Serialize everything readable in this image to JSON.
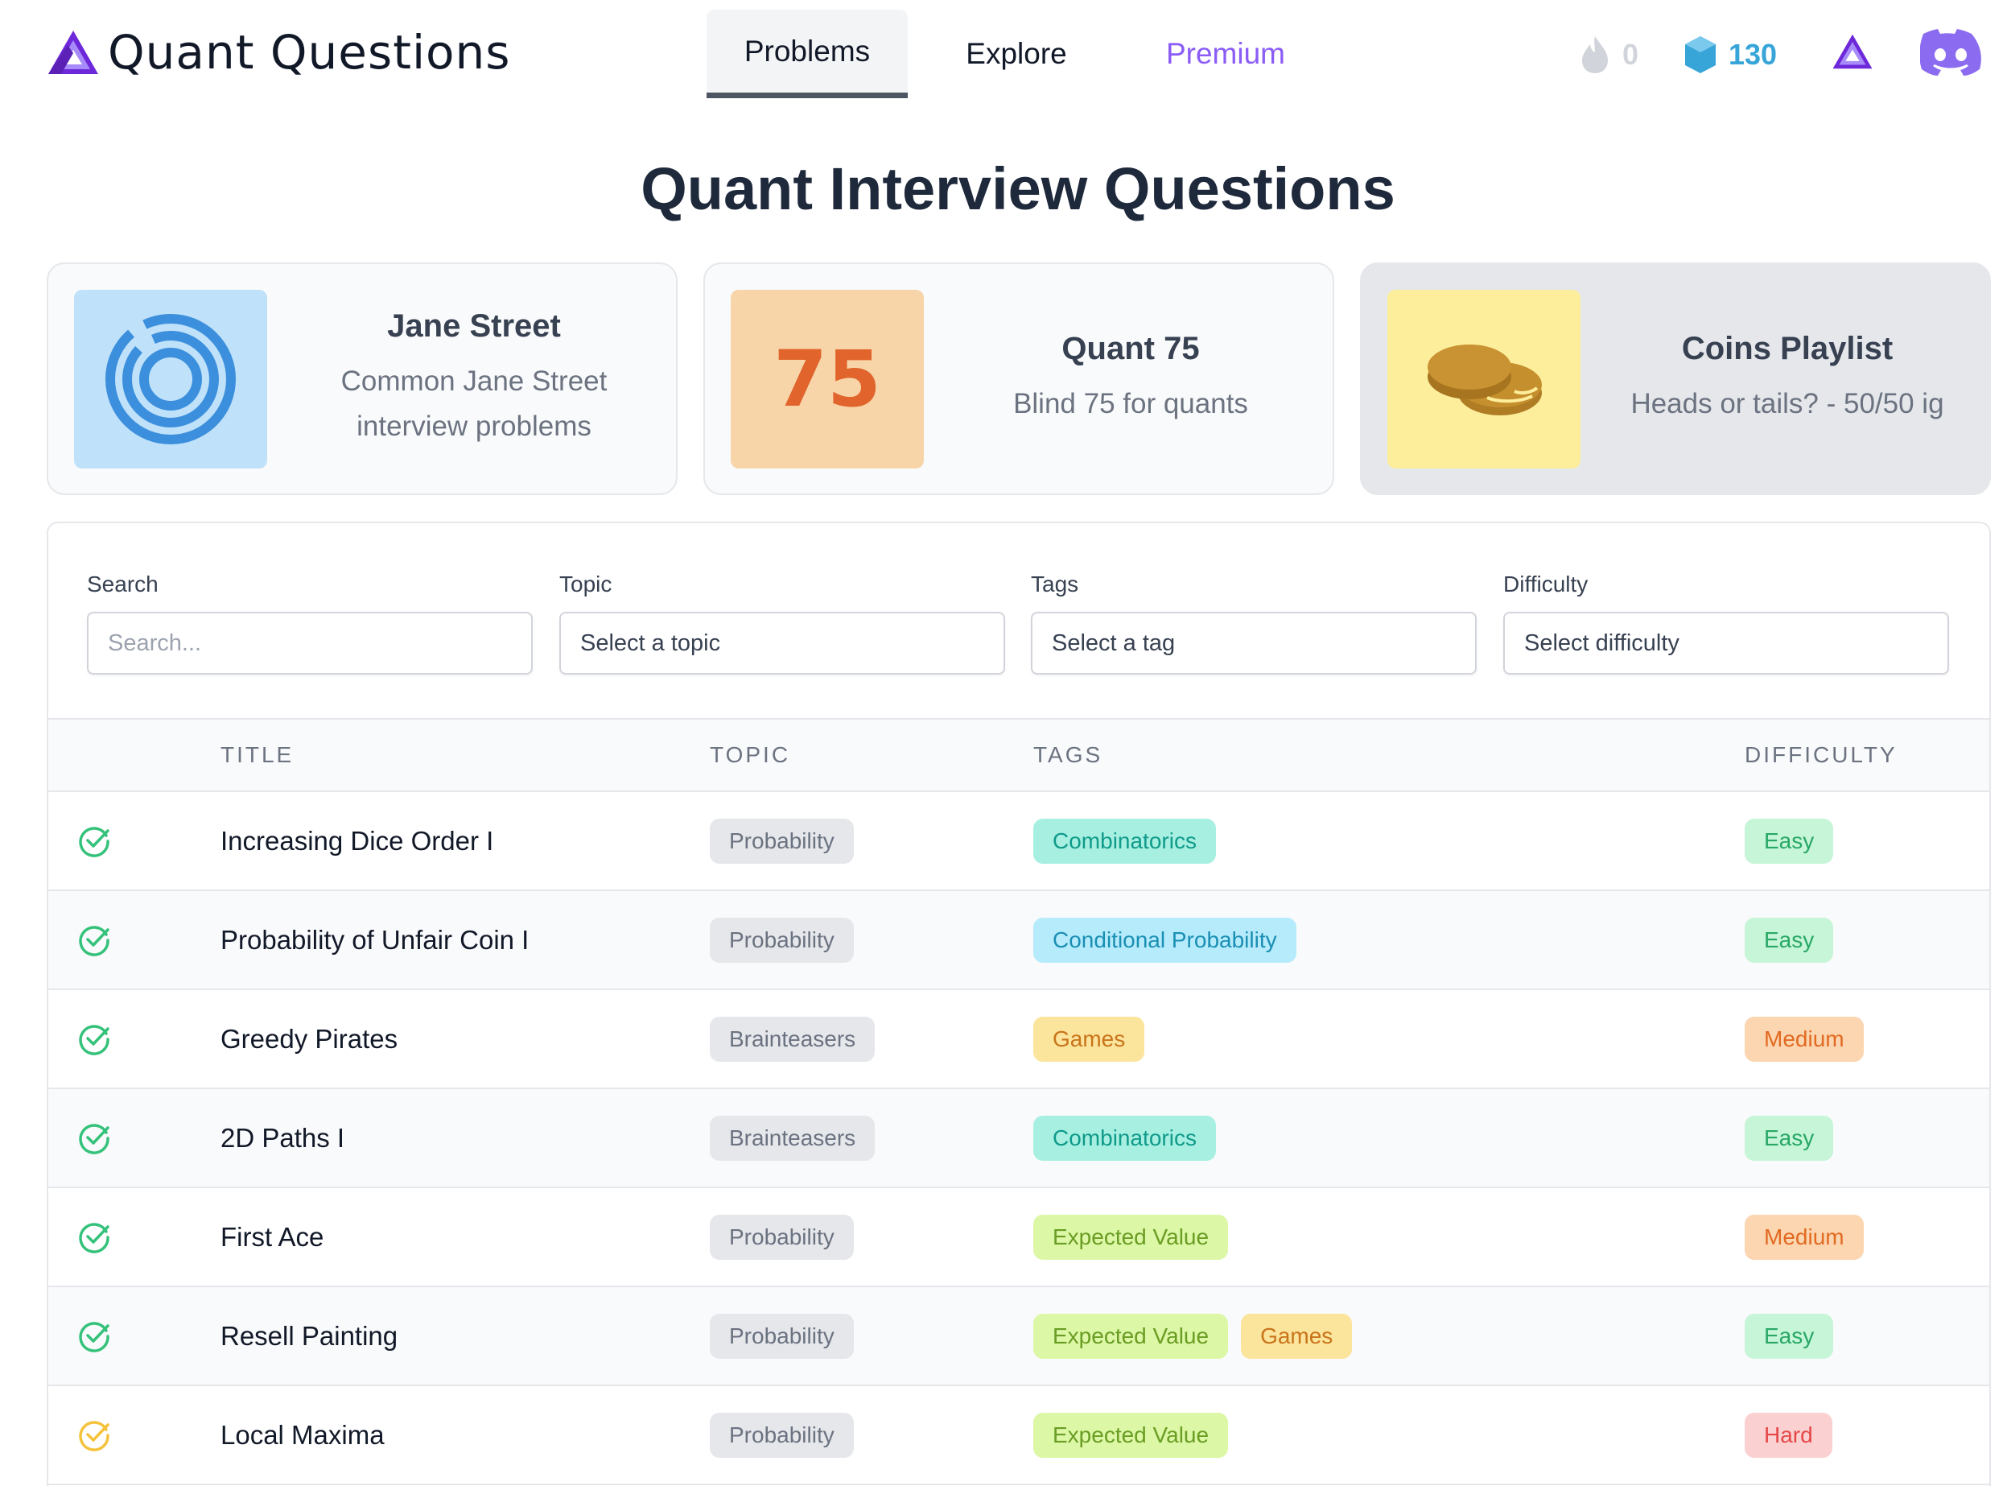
{
  "brand": {
    "name": "Quant Questions",
    "accent": "#7c3aed"
  },
  "nav": {
    "problems": "Problems",
    "explore": "Explore",
    "premium": "Premium"
  },
  "stats": {
    "streak": "0",
    "gems": "130"
  },
  "page_title": "Quant Interview Questions",
  "playlists": [
    {
      "title": "Jane Street",
      "desc": "Common Jane Street interview problems",
      "icon": "jane-street-logo"
    },
    {
      "title": "Quant 75",
      "desc": "Blind 75 for quants",
      "thumb_text": "75"
    },
    {
      "title": "Coins Playlist",
      "desc": "Heads or tails? - 50/50 ig",
      "icon": "coins-icon"
    }
  ],
  "filters": {
    "search": {
      "label": "Search",
      "placeholder": "Search..."
    },
    "topic": {
      "label": "Topic",
      "value": "Select a topic"
    },
    "tags": {
      "label": "Tags",
      "value": "Select a tag"
    },
    "difficulty": {
      "label": "Difficulty",
      "value": "Select difficulty"
    }
  },
  "table": {
    "headers": {
      "title": "TITLE",
      "topic": "TOPIC",
      "tags": "TAGS",
      "difficulty": "DIFFICULTY"
    },
    "rows": [
      {
        "status": "solved",
        "title": "Increasing Dice Order I",
        "topic": "Probability",
        "tags": [
          "Combinatorics"
        ],
        "difficulty": "Easy"
      },
      {
        "status": "solved",
        "title": "Probability of Unfair Coin I",
        "topic": "Probability",
        "tags": [
          "Conditional Probability"
        ],
        "difficulty": "Easy"
      },
      {
        "status": "solved",
        "title": "Greedy Pirates",
        "topic": "Brainteasers",
        "tags": [
          "Games"
        ],
        "difficulty": "Medium"
      },
      {
        "status": "solved",
        "title": "2D Paths I",
        "topic": "Brainteasers",
        "tags": [
          "Combinatorics"
        ],
        "difficulty": "Easy"
      },
      {
        "status": "solved",
        "title": "First Ace",
        "topic": "Probability",
        "tags": [
          "Expected Value"
        ],
        "difficulty": "Medium"
      },
      {
        "status": "solved",
        "title": "Resell Painting",
        "topic": "Probability",
        "tags": [
          "Expected Value",
          "Games"
        ],
        "difficulty": "Easy"
      },
      {
        "status": "attempted",
        "title": "Local Maxima",
        "topic": "Probability",
        "tags": [
          "Expected Value"
        ],
        "difficulty": "Hard"
      }
    ]
  },
  "colors": {
    "solved": "#34c27a",
    "attempted": "#f5c23c",
    "gem": "#38a5d8",
    "premium": "#8b5cf6",
    "discord": "#8b6cf0"
  }
}
